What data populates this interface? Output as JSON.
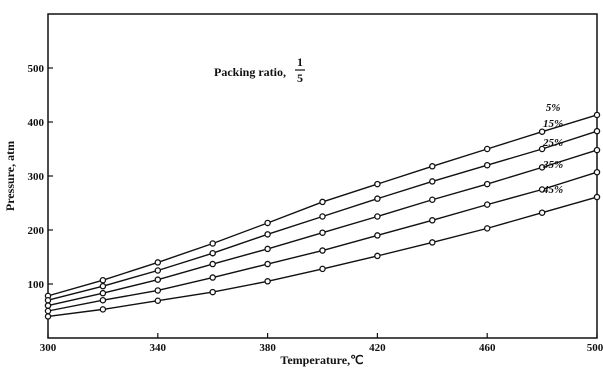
{
  "chart_data": {
    "type": "line",
    "title": "",
    "annotation": {
      "text": "Packing ratio,",
      "fraction_numerator": "1",
      "fraction_denominator": "5"
    },
    "xlabel": "Temperature,℃",
    "ylabel": "Pressure, atm",
    "xlim": [
      300,
      500
    ],
    "ylim": [
      0,
      600
    ],
    "xticks": [
      300,
      340,
      380,
      420,
      460,
      500
    ],
    "yticks": [
      100,
      200,
      300,
      400,
      500
    ],
    "grid": false,
    "legend": "none",
    "series": [
      {
        "name": "5%",
        "x": [
          300,
          320,
          340,
          360,
          380,
          400,
          420,
          440,
          460,
          480,
          500
        ],
        "y": [
          78,
          107,
          140,
          175,
          213,
          252,
          285,
          318,
          350,
          382,
          413
        ]
      },
      {
        "name": "15%",
        "x": [
          300,
          320,
          340,
          360,
          380,
          400,
          420,
          440,
          460,
          480,
          500
        ],
        "y": [
          70,
          96,
          125,
          157,
          192,
          225,
          258,
          290,
          320,
          350,
          383
        ]
      },
      {
        "name": "25%",
        "x": [
          300,
          320,
          340,
          360,
          380,
          400,
          420,
          440,
          460,
          480,
          500
        ],
        "y": [
          60,
          83,
          108,
          137,
          165,
          195,
          225,
          256,
          285,
          316,
          348
        ]
      },
      {
        "name": "35%",
        "x": [
          300,
          320,
          340,
          360,
          380,
          400,
          420,
          440,
          460,
          480,
          500
        ],
        "y": [
          50,
          70,
          88,
          112,
          137,
          162,
          190,
          218,
          247,
          275,
          307
        ]
      },
      {
        "name": "45%",
        "x": [
          300,
          320,
          340,
          360,
          380,
          400,
          420,
          440,
          460,
          480,
          500
        ],
        "y": [
          40,
          53,
          69,
          85,
          105,
          128,
          152,
          177,
          203,
          232,
          261
        ]
      }
    ]
  }
}
